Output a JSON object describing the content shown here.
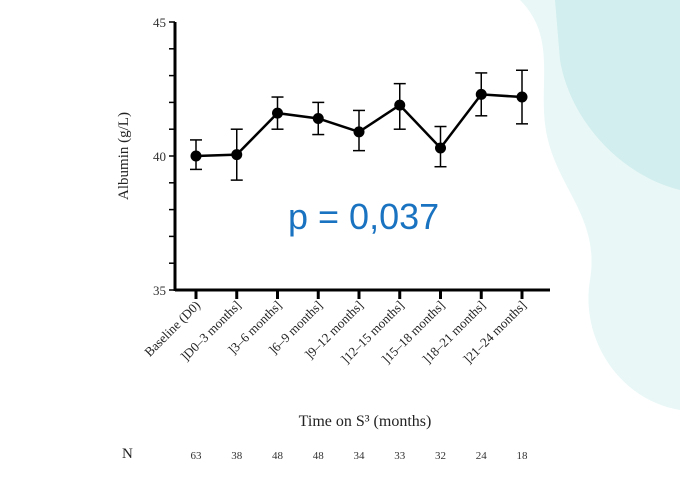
{
  "chart_data": {
    "type": "line",
    "ylabel": "Albumin (g/L)",
    "xlabel": "Time on S³ (months)",
    "ylim": [
      35,
      45
    ],
    "yticks": [
      35,
      40,
      45
    ],
    "categories": [
      "Baseline (D0)",
      "]D0–3 months]",
      "]3–6 months]",
      "]6–9 months]",
      "]9–12 months]",
      "]12–15 months]",
      "]15–18 months]",
      "]18–21 months]",
      "]21–24 months]"
    ],
    "values": [
      40.0,
      40.05,
      41.6,
      41.4,
      40.9,
      41.9,
      40.3,
      42.3,
      42.2
    ],
    "error_upper": [
      40.6,
      41.0,
      42.2,
      42.0,
      41.7,
      42.7,
      41.1,
      43.1,
      43.2
    ],
    "error_lower": [
      39.5,
      39.1,
      41.0,
      40.8,
      40.2,
      41.0,
      39.6,
      41.5,
      41.2
    ],
    "annotation": "p = 0,037",
    "n_label": "N",
    "n_values": [
      "63",
      "38",
      "48",
      "48",
      "34",
      "33",
      "32",
      "24",
      "18"
    ],
    "grid": false,
    "line_color": "#000000",
    "annotation_color": "#1a73c0"
  },
  "background_color": "#d6f0f0"
}
